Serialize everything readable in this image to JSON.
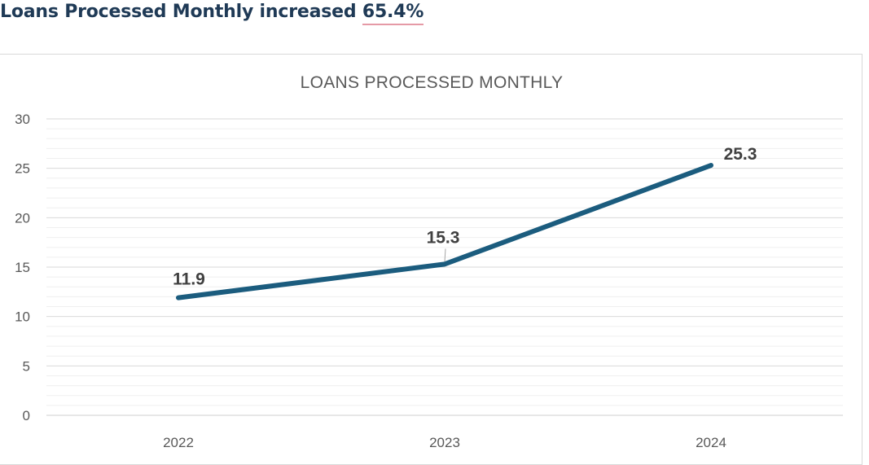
{
  "headline": {
    "prefix": "Loans Processed Monthly increased ",
    "percent": "65.4%"
  },
  "chart_data": {
    "type": "line",
    "title": "LOANS PROCESSED MONTHLY",
    "categories": [
      "2022",
      "2023",
      "2024"
    ],
    "series": [
      {
        "values": [
          11.9,
          15.3,
          25.3
        ],
        "color": "#1b5c7e"
      }
    ],
    "data_labels": [
      "11.9",
      "15.3",
      "25.3"
    ],
    "ylim": [
      0,
      30
    ],
    "y_ticks": [
      0,
      5,
      10,
      15,
      20,
      25,
      30
    ],
    "minor_gridlines": true,
    "xlabel": "",
    "ylabel": ""
  }
}
